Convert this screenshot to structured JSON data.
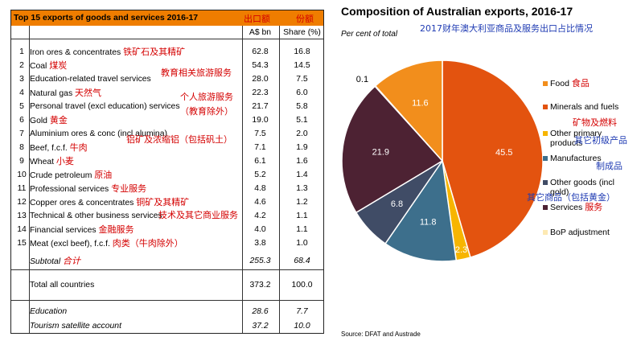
{
  "table": {
    "title": "Top 15 exports of goods and services 2016-17",
    "title_zh_value": "出口额",
    "title_zh_share": "份额",
    "col_value": "A$ bn",
    "col_share": "Share (%)",
    "rows": [
      {
        "num": "1",
        "name": "Iron ores & concentrates",
        "zh": "铁矿石及其精矿",
        "value": "62.8",
        "share": "16.8"
      },
      {
        "num": "2",
        "name": "Coal",
        "zh": "煤炭",
        "value": "54.3",
        "share": "14.5"
      },
      {
        "num": "3",
        "name": "Education-related travel services",
        "zh": "",
        "value": "28.0",
        "share": "7.5"
      },
      {
        "num": "4",
        "name": "Natural gas",
        "zh": "天然气",
        "value": "22.3",
        "share": "6.0"
      },
      {
        "num": "5",
        "name": "Personal travel (excl education) services",
        "zh": "",
        "value": "21.7",
        "share": "5.8"
      },
      {
        "num": "6",
        "name": "Gold",
        "zh": "黄金",
        "value": "19.0",
        "share": "5.1"
      },
      {
        "num": "7",
        "name": "Aluminium ores & conc (incl alumina)",
        "zh": "",
        "value": "7.5",
        "share": "2.0"
      },
      {
        "num": "8",
        "name": "Beef, f.c.f.",
        "zh": "牛肉",
        "value": "7.1",
        "share": "1.9"
      },
      {
        "num": "9",
        "name": "Wheat",
        "zh": "小麦",
        "value": "6.1",
        "share": "1.6"
      },
      {
        "num": "10",
        "name": "Crude petroleum",
        "zh": "原油",
        "value": "5.2",
        "share": "1.4"
      },
      {
        "num": "11",
        "name": "Professional services",
        "zh": "专业服务",
        "value": "4.8",
        "share": "1.3"
      },
      {
        "num": "12",
        "name": "Copper ores & concentrates",
        "zh": "铜矿及其精矿",
        "value": "4.6",
        "share": "1.2"
      },
      {
        "num": "13",
        "name": "Technical & other business services",
        "zh": "",
        "value": "4.2",
        "share": "1.1"
      },
      {
        "num": "14",
        "name": "Financial services",
        "zh": "金融服务",
        "value": "4.0",
        "share": "1.1"
      },
      {
        "num": "15",
        "name": "Meat (excl beef), f.c.f.",
        "zh": "肉类（牛肉除外）",
        "value": "3.8",
        "share": "1.0"
      }
    ],
    "subtotal": {
      "label": "Subtotal",
      "zh": "合计",
      "value": "255.3",
      "share": "68.4"
    },
    "total": {
      "label": "Total all countries",
      "value": "373.2",
      "share": "100.0"
    },
    "education": {
      "label": "Education",
      "value": "28.6",
      "share": "7.7"
    },
    "tourism": {
      "label": "Tourism satellite account",
      "value": "37.2",
      "share": "10.0"
    },
    "overlay_zh": {
      "education_travel": "教育相关旅游服务",
      "personal_travel_1": "个人旅游服务",
      "personal_travel_2": "（教育除外）",
      "aluminium": "铝矿及浓缩铝（包括矾土）",
      "technical": "技术及其它商业服务"
    }
  },
  "chart_title": "Composition of Australian exports, 2016-17",
  "chart_subtitle": "Per cent of total",
  "chart_subtitle_zh": "2017财年澳大利亚商品及服务出口占比情况",
  "source": "Source: DFAT and Austrade",
  "chart_data": {
    "type": "pie",
    "title": "Composition of Australian exports, 2016-17",
    "unit": "Per cent of total",
    "slices": [
      {
        "name": "Food",
        "zh": "食品",
        "value": 11.6,
        "color": "#f28e1c"
      },
      {
        "name": "Minerals and fuels",
        "zh": "矿物及燃料",
        "value": 45.5,
        "color": "#e3530f"
      },
      {
        "name": "Other primary products",
        "zh": "其它初级产品",
        "value": 2.3,
        "color": "#f7b500"
      },
      {
        "name": "Manufactures",
        "zh": "制成品",
        "value": 11.8,
        "color": "#3d6f8c"
      },
      {
        "name": "Other goods (incl gold)",
        "zh": "其它商品（包括黄金）",
        "value": 6.8,
        "color": "#404c66"
      },
      {
        "name": "Services",
        "zh": "服务",
        "value": 21.9,
        "color": "#4d2233"
      },
      {
        "name": "BoP adjustment",
        "zh": "",
        "value": 0.1,
        "color": "#fde9b3"
      }
    ],
    "legend_position": "right"
  }
}
